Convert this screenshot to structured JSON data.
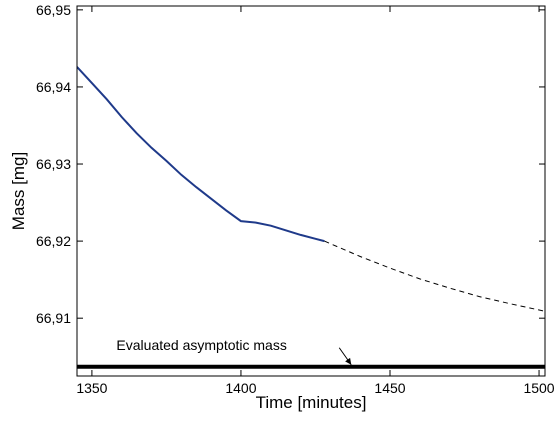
{
  "chart_data": {
    "type": "line",
    "title": "",
    "xlabel": "Time [minutes]",
    "ylabel": "Mass [mg]",
    "xlim": [
      1345,
      1502
    ],
    "ylim": [
      66.9025,
      66.9505
    ],
    "xticks": [
      1350,
      1400,
      1450,
      1500
    ],
    "xtick_labels": [
      "1350",
      "1400",
      "1450",
      "1500"
    ],
    "yticks": [
      66.91,
      66.92,
      66.93,
      66.94,
      66.95
    ],
    "ytick_labels": [
      "66,91",
      "66,92",
      "66,93",
      "66,94",
      "66,95"
    ],
    "grid": false,
    "series": [
      {
        "style": "solid",
        "color": "#1f3a8a",
        "x": [
          1345,
          1350,
          1355,
          1360,
          1365,
          1370,
          1375,
          1380,
          1385,
          1390,
          1395,
          1400,
          1405,
          1410,
          1415,
          1420,
          1425,
          1428
        ],
        "y": [
          66.9426,
          66.9405,
          66.9384,
          66.9361,
          66.934,
          66.9321,
          66.9304,
          66.9286,
          66.927,
          66.9255,
          66.924,
          66.9226,
          66.9224,
          66.922,
          66.9214,
          66.9208,
          66.9203,
          66.92
        ]
      },
      {
        "style": "dashed",
        "color": "#000000",
        "x": [
          1428,
          1440,
          1450,
          1460,
          1470,
          1480,
          1490,
          1502
        ],
        "y": [
          66.92,
          66.918,
          66.9165,
          66.9151,
          66.9139,
          66.9128,
          66.9119,
          66.9109
        ]
      },
      {
        "style": "thick",
        "color": "#000000",
        "x": [
          1345,
          1502
        ],
        "y": [
          66.9037,
          66.9037
        ]
      }
    ],
    "annotations": [
      {
        "text": "Evaluated asymptotic mass",
        "x": 1375,
        "y": 66.9065,
        "arrow_to": [
          1437,
          66.9037
        ]
      }
    ]
  }
}
